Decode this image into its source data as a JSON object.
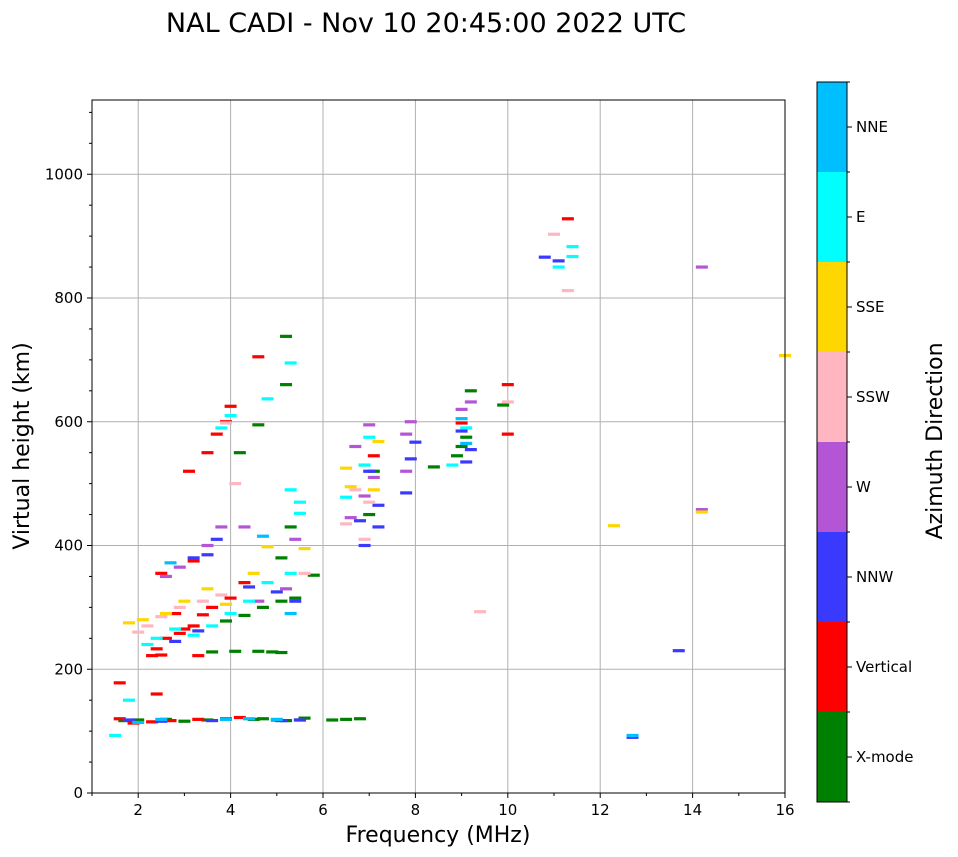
{
  "chart_data": {
    "type": "scatter",
    "title": "NAL CADI - Nov 10 20:45:00 2022 UTC",
    "xlabel": "Frequency (MHz)",
    "ylabel": "Virtual height (km)",
    "xlim": [
      1,
      16
    ],
    "ylim": [
      0,
      1120
    ],
    "xticks": [
      2,
      4,
      6,
      8,
      10,
      12,
      14,
      16
    ],
    "yticks": [
      0,
      200,
      400,
      600,
      800,
      1000
    ],
    "grid": true,
    "colorbar": {
      "label": "Azimuth Direction",
      "categories": [
        "X-mode",
        "Vertical",
        "NNW",
        "W",
        "SSW",
        "SSE",
        "E",
        "NNE"
      ],
      "colors": [
        "#008000",
        "#ff0000",
        "#3a3aff",
        "#b455d6",
        "#ffb6c1",
        "#ffd700",
        "#00ffff",
        "#00bfff"
      ]
    },
    "series": [
      {
        "name": "X-mode",
        "points": [
          [
            1.7,
            117
          ],
          [
            2.0,
            118
          ],
          [
            2.6,
            119
          ],
          [
            3.0,
            116
          ],
          [
            3.5,
            118
          ],
          [
            3.9,
            120
          ],
          [
            4.5,
            119
          ],
          [
            4.7,
            120
          ],
          [
            5.0,
            118
          ],
          [
            5.2,
            117
          ],
          [
            5.5,
            118
          ],
          [
            5.6,
            121
          ],
          [
            6.2,
            118
          ],
          [
            6.5,
            119
          ],
          [
            6.8,
            120
          ],
          [
            3.6,
            228
          ],
          [
            4.1,
            229
          ],
          [
            4.6,
            229
          ],
          [
            4.9,
            228
          ],
          [
            5.1,
            227
          ],
          [
            3.9,
            278
          ],
          [
            4.3,
            287
          ],
          [
            4.7,
            300
          ],
          [
            5.1,
            310
          ],
          [
            5.4,
            315
          ],
          [
            5.8,
            352
          ],
          [
            5.1,
            380
          ],
          [
            5.3,
            430
          ],
          [
            4.2,
            550
          ],
          [
            4.6,
            595
          ],
          [
            5.2,
            660
          ],
          [
            5.2,
            738
          ],
          [
            7.1,
            520
          ],
          [
            8.4,
            527
          ],
          [
            8.9,
            545
          ],
          [
            9.0,
            560
          ],
          [
            9.1,
            575
          ],
          [
            9.2,
            650
          ],
          [
            9.9,
            627
          ],
          [
            7.0,
            450
          ]
        ]
      },
      {
        "name": "Vertical",
        "points": [
          [
            1.6,
            120
          ],
          [
            1.9,
            113
          ],
          [
            2.3,
            115
          ],
          [
            2.7,
            117
          ],
          [
            3.3,
            119
          ],
          [
            4.2,
            122
          ],
          [
            2.3,
            222
          ],
          [
            2.5,
            223
          ],
          [
            3.3,
            222
          ],
          [
            2.4,
            233
          ],
          [
            2.6,
            250
          ],
          [
            2.9,
            258
          ],
          [
            3.0,
            265
          ],
          [
            3.2,
            270
          ],
          [
            3.4,
            288
          ],
          [
            3.6,
            300
          ],
          [
            4.0,
            315
          ],
          [
            4.3,
            340
          ],
          [
            2.8,
            290
          ],
          [
            1.6,
            178
          ],
          [
            2.4,
            160
          ],
          [
            3.1,
            520
          ],
          [
            3.5,
            550
          ],
          [
            3.7,
            580
          ],
          [
            3.9,
            600
          ],
          [
            4.0,
            625
          ],
          [
            4.6,
            705
          ],
          [
            7.1,
            545
          ],
          [
            9.0,
            598
          ],
          [
            10.0,
            660
          ],
          [
            10.0,
            580
          ],
          [
            11.3,
            928
          ],
          [
            2.5,
            355
          ],
          [
            3.2,
            375
          ]
        ]
      },
      {
        "name": "NNW",
        "points": [
          [
            1.8,
            118
          ],
          [
            2.5,
            116
          ],
          [
            3.6,
            117
          ],
          [
            5.1,
            117
          ],
          [
            5.5,
            118
          ],
          [
            2.8,
            245
          ],
          [
            3.3,
            262
          ],
          [
            4.4,
            333
          ],
          [
            3.5,
            385
          ],
          [
            3.7,
            410
          ],
          [
            3.2,
            380
          ],
          [
            6.8,
            440
          ],
          [
            6.9,
            400
          ],
          [
            7.0,
            520
          ],
          [
            7.2,
            430
          ],
          [
            7.2,
            465
          ],
          [
            7.8,
            485
          ],
          [
            7.9,
            540
          ],
          [
            8.0,
            567
          ],
          [
            9.0,
            585
          ],
          [
            9.1,
            535
          ],
          [
            9.2,
            555
          ],
          [
            10.8,
            866
          ],
          [
            11.1,
            860
          ],
          [
            12.7,
            90
          ],
          [
            13.7,
            230
          ],
          [
            5.0,
            325
          ],
          [
            5.4,
            310
          ]
        ]
      },
      {
        "name": "W",
        "points": [
          [
            2.6,
            350
          ],
          [
            2.9,
            365
          ],
          [
            3.5,
            400
          ],
          [
            3.8,
            430
          ],
          [
            4.3,
            430
          ],
          [
            5.4,
            410
          ],
          [
            6.6,
            445
          ],
          [
            6.9,
            480
          ],
          [
            7.0,
            595
          ],
          [
            7.1,
            510
          ],
          [
            7.8,
            520
          ],
          [
            7.8,
            580
          ],
          [
            7.9,
            600
          ],
          [
            9.2,
            632
          ],
          [
            9.0,
            620
          ],
          [
            14.2,
            850
          ],
          [
            14.2,
            458
          ],
          [
            6.7,
            560
          ],
          [
            5.2,
            330
          ],
          [
            4.6,
            310
          ]
        ]
      },
      {
        "name": "SSW",
        "points": [
          [
            2.0,
            260
          ],
          [
            2.2,
            270
          ],
          [
            2.5,
            285
          ],
          [
            2.9,
            300
          ],
          [
            3.4,
            310
          ],
          [
            3.8,
            320
          ],
          [
            6.5,
            435
          ],
          [
            6.7,
            490
          ],
          [
            6.9,
            410
          ],
          [
            7.0,
            470
          ],
          [
            9.4,
            293
          ],
          [
            10.0,
            632
          ],
          [
            11.0,
            903
          ],
          [
            11.3,
            812
          ],
          [
            5.6,
            355
          ],
          [
            3.9,
            598
          ],
          [
            4.1,
            500
          ]
        ]
      },
      {
        "name": "SSE",
        "points": [
          [
            1.8,
            275
          ],
          [
            2.1,
            280
          ],
          [
            2.6,
            290
          ],
          [
            3.0,
            310
          ],
          [
            3.5,
            330
          ],
          [
            3.9,
            305
          ],
          [
            4.5,
            355
          ],
          [
            4.8,
            398
          ],
          [
            5.6,
            395
          ],
          [
            6.6,
            495
          ],
          [
            7.2,
            568
          ],
          [
            7.1,
            490
          ],
          [
            12.3,
            432
          ],
          [
            14.2,
            454
          ],
          [
            16.0,
            707
          ],
          [
            6.9,
            530
          ],
          [
            6.5,
            525
          ]
        ]
      },
      {
        "name": "E",
        "points": [
          [
            1.5,
            93
          ],
          [
            1.8,
            150
          ],
          [
            2.2,
            240
          ],
          [
            2.4,
            250
          ],
          [
            2.8,
            265
          ],
          [
            3.2,
            255
          ],
          [
            3.6,
            270
          ],
          [
            4.0,
            290
          ],
          [
            4.4,
            310
          ],
          [
            4.8,
            340
          ],
          [
            5.3,
            355
          ],
          [
            5.3,
            490
          ],
          [
            5.3,
            695
          ],
          [
            5.5,
            470
          ],
          [
            5.5,
            452
          ],
          [
            6.5,
            478
          ],
          [
            6.9,
            530
          ],
          [
            7.0,
            575
          ],
          [
            8.8,
            530
          ],
          [
            9.1,
            590
          ],
          [
            11.1,
            850
          ],
          [
            11.4,
            867
          ],
          [
            11.4,
            883
          ],
          [
            4.0,
            610
          ],
          [
            4.8,
            637
          ],
          [
            3.8,
            590
          ]
        ]
      },
      {
        "name": "NNE",
        "points": [
          [
            2.0,
            114
          ],
          [
            2.5,
            119
          ],
          [
            3.9,
            119
          ],
          [
            4.4,
            120
          ],
          [
            5.0,
            119
          ],
          [
            9.0,
            605
          ],
          [
            9.1,
            565
          ],
          [
            12.7,
            93
          ],
          [
            5.3,
            290
          ],
          [
            4.7,
            415
          ],
          [
            2.7,
            372
          ]
        ]
      }
    ]
  }
}
